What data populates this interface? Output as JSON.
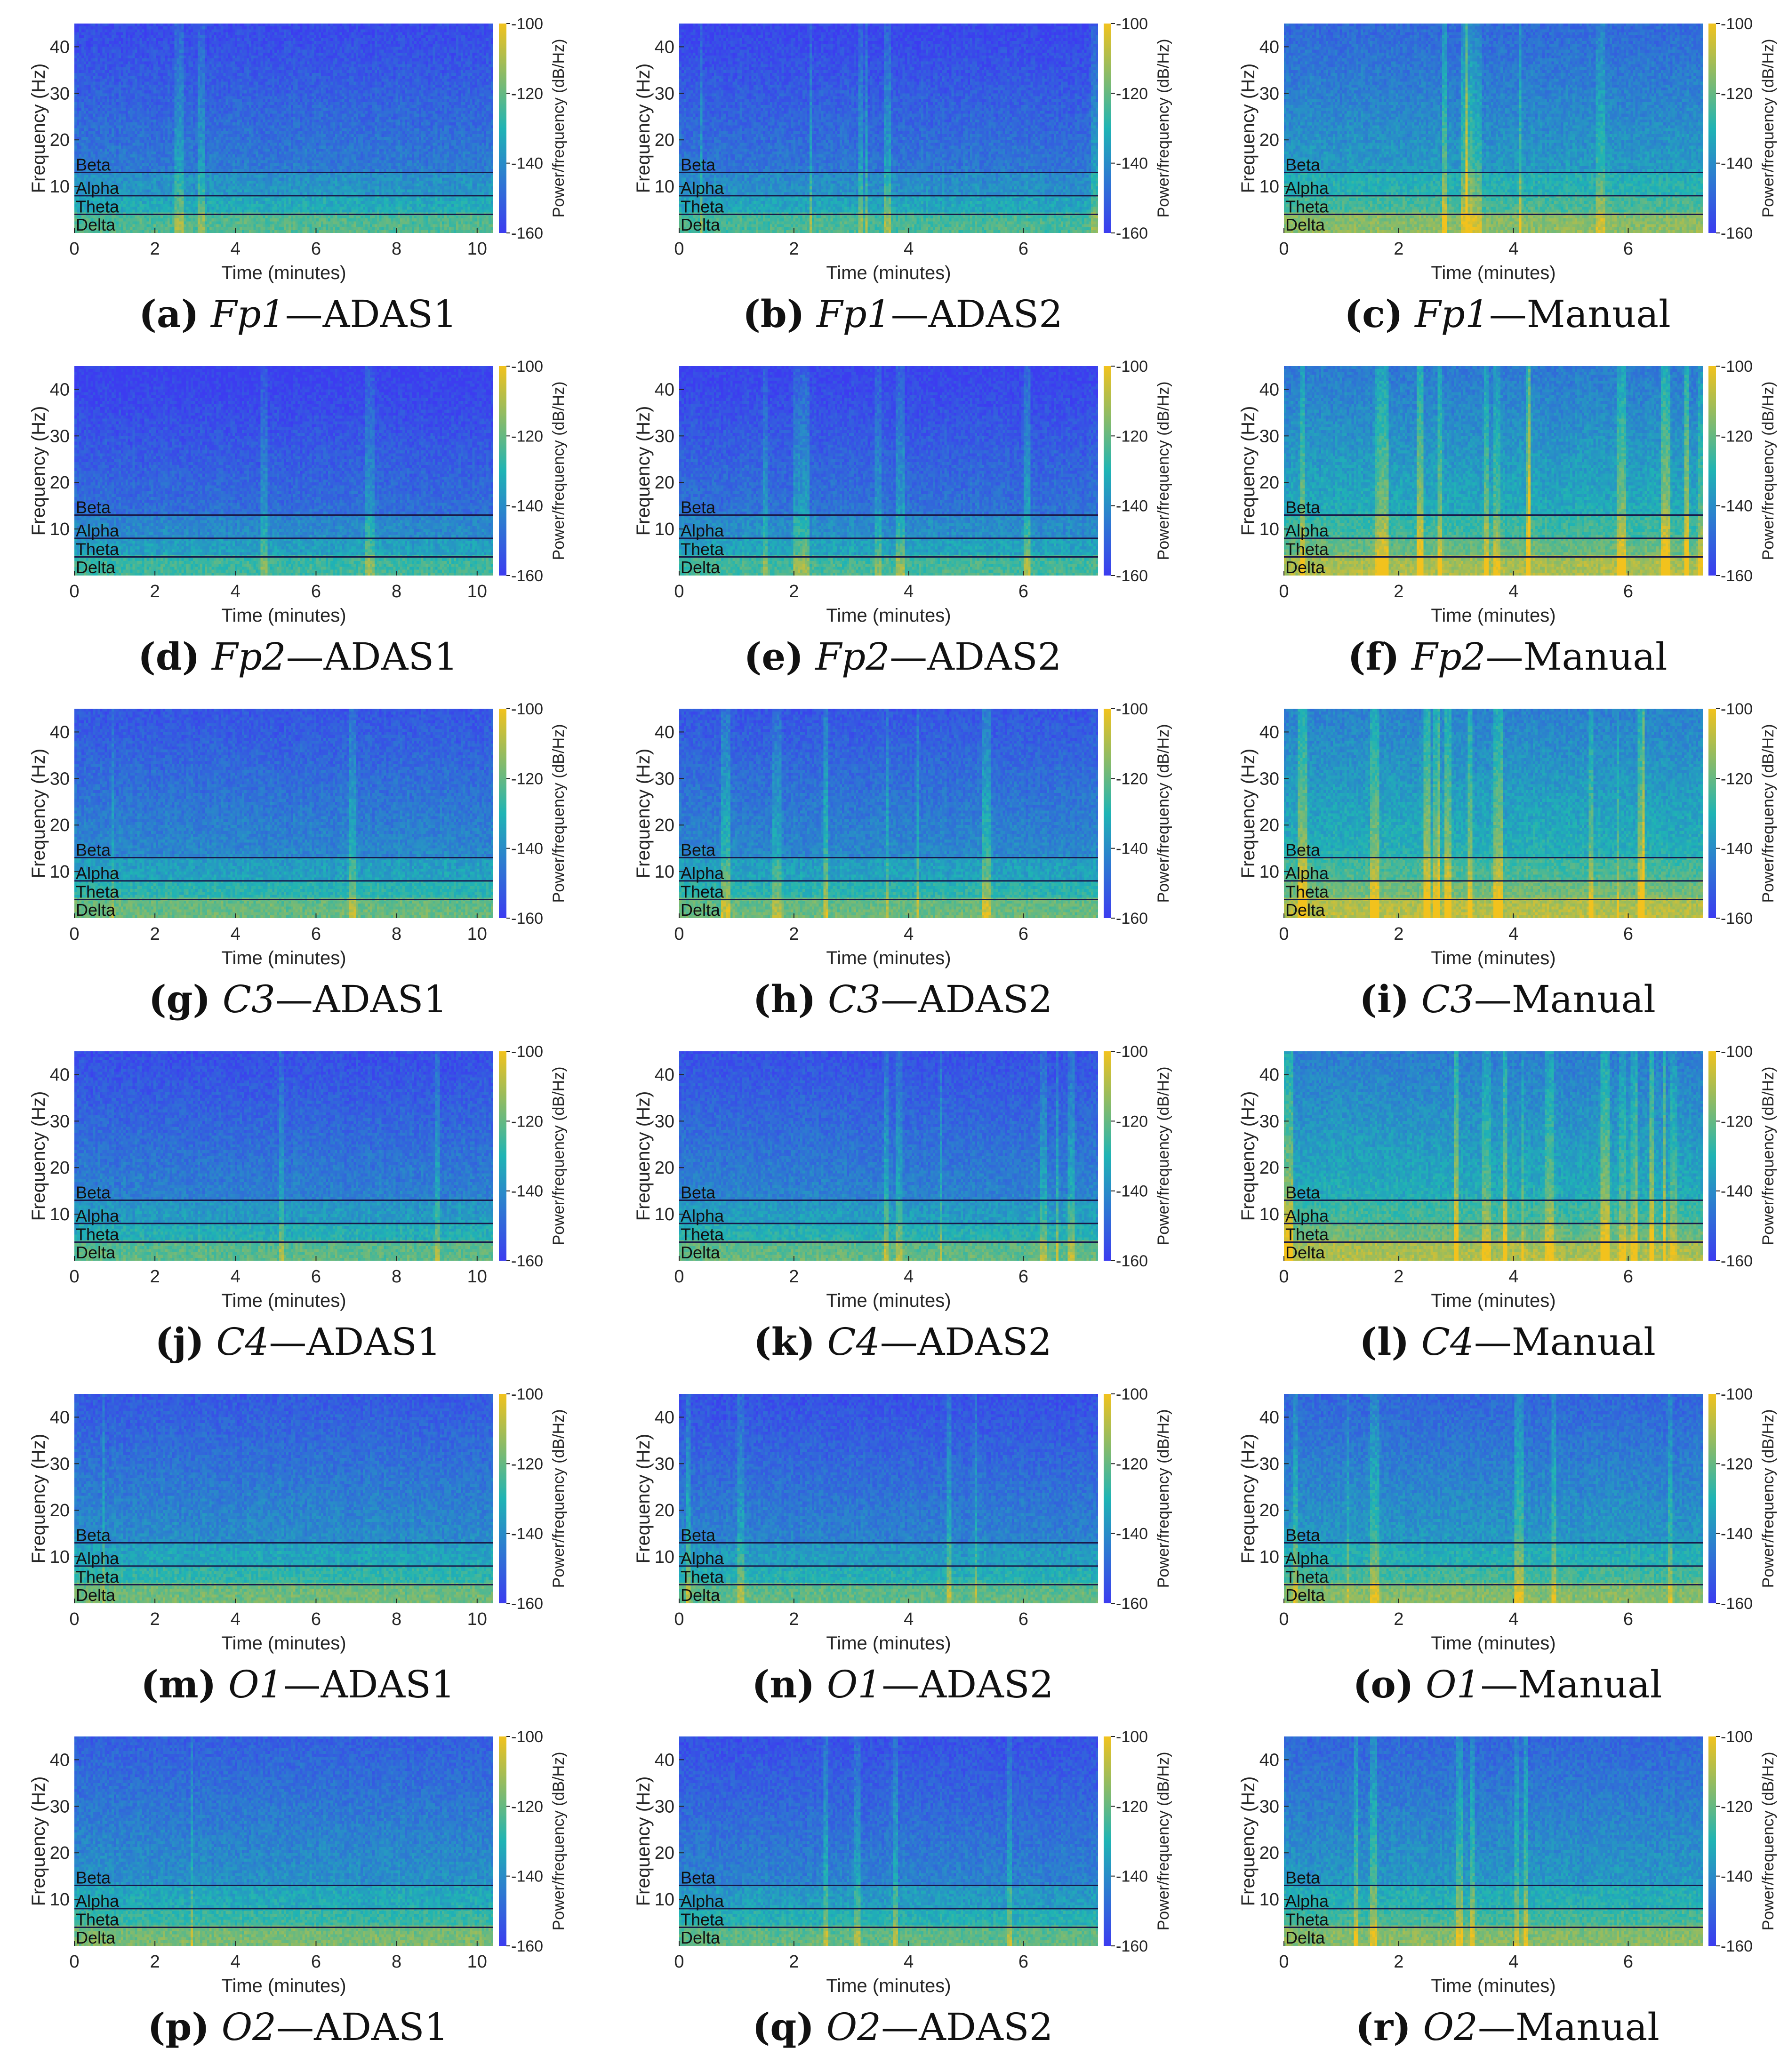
{
  "figure": {
    "rows": 6,
    "cols": 3
  },
  "colors": {
    "low": "#3c3cf0",
    "mid": "#1fb4b4",
    "high": "#f2c21d",
    "band_line": "#1a1a4a"
  },
  "chart_data": [
    {
      "id": "a",
      "letter": "(a)",
      "channel": "Fp1",
      "method": "ADAS1",
      "type": "heatmap",
      "xlabel": "Time (minutes)",
      "ylabel": "Frequency (Hz)",
      "colorbar_label": "Power/frequency (dB/Hz)",
      "xlim": [
        0,
        10.4
      ],
      "xticks": [
        "0",
        "2",
        "4",
        "6",
        "8",
        "10"
      ],
      "ylim": [
        0,
        45
      ],
      "yticks": [
        "10",
        "20",
        "30",
        "40"
      ],
      "clim": [
        -160,
        -100
      ],
      "cticks": [
        "-100",
        "-120",
        "-140",
        "-160"
      ],
      "bands": [
        {
          "name": "Delta",
          "lower_hz": 0
        },
        {
          "name": "Theta",
          "lower_hz": 4
        },
        {
          "name": "Alpha",
          "lower_hz": 8
        },
        {
          "name": "Beta",
          "lower_hz": 13
        }
      ],
      "intensity": 0.35,
      "artifact_strength": 0.15
    },
    {
      "id": "b",
      "letter": "(b)",
      "channel": "Fp1",
      "method": "ADAS2",
      "type": "heatmap",
      "xlabel": "Time (minutes)",
      "ylabel": "Frequency (Hz)",
      "colorbar_label": "Power/frequency (dB/Hz)",
      "xlim": [
        0,
        7.3
      ],
      "xticks": [
        "0",
        "2",
        "4",
        "6"
      ],
      "ylim": [
        0,
        45
      ],
      "yticks": [
        "10",
        "20",
        "30",
        "40"
      ],
      "clim": [
        -160,
        -100
      ],
      "cticks": [
        "-100",
        "-120",
        "-140",
        "-160"
      ],
      "bands": [
        {
          "name": "Delta",
          "lower_hz": 0
        },
        {
          "name": "Theta",
          "lower_hz": 4
        },
        {
          "name": "Alpha",
          "lower_hz": 8
        },
        {
          "name": "Beta",
          "lower_hz": 13
        }
      ],
      "intensity": 0.33,
      "artifact_strength": 0.4
    },
    {
      "id": "c",
      "letter": "(c)",
      "channel": "Fp1",
      "method": "Manual",
      "type": "heatmap",
      "xlabel": "Time (minutes)",
      "ylabel": "Frequency (Hz)",
      "colorbar_label": "Power/frequency (dB/Hz)",
      "xlim": [
        0,
        7.3
      ],
      "xticks": [
        "0",
        "2",
        "4",
        "6"
      ],
      "ylim": [
        0,
        45
      ],
      "yticks": [
        "10",
        "20",
        "30",
        "40"
      ],
      "clim": [
        -160,
        -100
      ],
      "cticks": [
        "-100",
        "-120",
        "-140",
        "-160"
      ],
      "bands": [
        {
          "name": "Delta",
          "lower_hz": 0
        },
        {
          "name": "Theta",
          "lower_hz": 4
        },
        {
          "name": "Alpha",
          "lower_hz": 8
        },
        {
          "name": "Beta",
          "lower_hz": 13
        }
      ],
      "intensity": 0.48,
      "artifact_strength": 0.5
    },
    {
      "id": "d",
      "letter": "(d)",
      "channel": "Fp2",
      "method": "ADAS1",
      "type": "heatmap",
      "xlabel": "Time (minutes)",
      "ylabel": "Frequency (Hz)",
      "colorbar_label": "Power/frequency (dB/Hz)",
      "xlim": [
        0,
        10.4
      ],
      "xticks": [
        "0",
        "2",
        "4",
        "6",
        "8",
        "10"
      ],
      "ylim": [
        0,
        45
      ],
      "yticks": [
        "10",
        "20",
        "30",
        "40"
      ],
      "clim": [
        -160,
        -100
      ],
      "cticks": [
        "-100",
        "-120",
        "-140",
        "-160"
      ],
      "bands": [
        {
          "name": "Delta",
          "lower_hz": 0
        },
        {
          "name": "Theta",
          "lower_hz": 4
        },
        {
          "name": "Alpha",
          "lower_hz": 8
        },
        {
          "name": "Beta",
          "lower_hz": 13
        }
      ],
      "intensity": 0.3,
      "artifact_strength": 0.15
    },
    {
      "id": "e",
      "letter": "(e)",
      "channel": "Fp2",
      "method": "ADAS2",
      "type": "heatmap",
      "xlabel": "Time (minutes)",
      "ylabel": "Frequency (Hz)",
      "colorbar_label": "Power/frequency (dB/Hz)",
      "xlim": [
        0,
        7.3
      ],
      "xticks": [
        "0",
        "2",
        "4",
        "6"
      ],
      "ylim": [
        0,
        45
      ],
      "yticks": [
        "10",
        "20",
        "30",
        "40"
      ],
      "clim": [
        -160,
        -100
      ],
      "cticks": [
        "-100",
        "-120",
        "-140",
        "-160"
      ],
      "bands": [
        {
          "name": "Delta",
          "lower_hz": 0
        },
        {
          "name": "Theta",
          "lower_hz": 4
        },
        {
          "name": "Alpha",
          "lower_hz": 8
        },
        {
          "name": "Beta",
          "lower_hz": 13
        }
      ],
      "intensity": 0.32,
      "artifact_strength": 0.4
    },
    {
      "id": "f",
      "letter": "(f)",
      "channel": "Fp2",
      "method": "Manual",
      "type": "heatmap",
      "xlabel": "Time (minutes)",
      "ylabel": "Frequency (Hz)",
      "colorbar_label": "Power/frequency (dB/Hz)",
      "xlim": [
        0,
        7.3
      ],
      "xticks": [
        "0",
        "2",
        "4",
        "6"
      ],
      "ylim": [
        0,
        45
      ],
      "yticks": [
        "10",
        "20",
        "30",
        "40"
      ],
      "clim": [
        -160,
        -100
      ],
      "cticks": [
        "-100",
        "-120",
        "-140",
        "-160"
      ],
      "bands": [
        {
          "name": "Delta",
          "lower_hz": 0
        },
        {
          "name": "Theta",
          "lower_hz": 4
        },
        {
          "name": "Alpha",
          "lower_hz": 8
        },
        {
          "name": "Beta",
          "lower_hz": 13
        }
      ],
      "intensity": 0.55,
      "artifact_strength": 0.9
    },
    {
      "id": "g",
      "letter": "(g)",
      "channel": "C3",
      "method": "ADAS1",
      "type": "heatmap",
      "xlabel": "Time (minutes)",
      "ylabel": "Frequency (Hz)",
      "colorbar_label": "Power/frequency (dB/Hz)",
      "xlim": [
        0,
        10.4
      ],
      "xticks": [
        "0",
        "2",
        "4",
        "6",
        "8",
        "10"
      ],
      "ylim": [
        0,
        45
      ],
      "yticks": [
        "10",
        "20",
        "30",
        "40"
      ],
      "clim": [
        -160,
        -100
      ],
      "cticks": [
        "-100",
        "-120",
        "-140",
        "-160"
      ],
      "bands": [
        {
          "name": "Delta",
          "lower_hz": 0
        },
        {
          "name": "Theta",
          "lower_hz": 4
        },
        {
          "name": "Alpha",
          "lower_hz": 8
        },
        {
          "name": "Beta",
          "lower_hz": 13
        }
      ],
      "intensity": 0.4,
      "artifact_strength": 0.15
    },
    {
      "id": "h",
      "letter": "(h)",
      "channel": "C3",
      "method": "ADAS2",
      "type": "heatmap",
      "xlabel": "Time (minutes)",
      "ylabel": "Frequency (Hz)",
      "colorbar_label": "Power/frequency (dB/Hz)",
      "xlim": [
        0,
        7.3
      ],
      "xticks": [
        "0",
        "2",
        "4",
        "6"
      ],
      "ylim": [
        0,
        45
      ],
      "yticks": [
        "10",
        "20",
        "30",
        "40"
      ],
      "clim": [
        -160,
        -100
      ],
      "cticks": [
        "-100",
        "-120",
        "-140",
        "-160"
      ],
      "bands": [
        {
          "name": "Delta",
          "lower_hz": 0
        },
        {
          "name": "Theta",
          "lower_hz": 4
        },
        {
          "name": "Alpha",
          "lower_hz": 8
        },
        {
          "name": "Beta",
          "lower_hz": 13
        }
      ],
      "intensity": 0.4,
      "artifact_strength": 0.45
    },
    {
      "id": "i",
      "letter": "(i)",
      "channel": "C3",
      "method": "Manual",
      "type": "heatmap",
      "xlabel": "Time (minutes)",
      "ylabel": "Frequency (Hz)",
      "colorbar_label": "Power/frequency (dB/Hz)",
      "xlim": [
        0,
        7.3
      ],
      "xticks": [
        "0",
        "2",
        "4",
        "6"
      ],
      "ylim": [
        0,
        45
      ],
      "yticks": [
        "10",
        "20",
        "30",
        "40"
      ],
      "clim": [
        -160,
        -100
      ],
      "cticks": [
        "-100",
        "-120",
        "-140",
        "-160"
      ],
      "bands": [
        {
          "name": "Delta",
          "lower_hz": 0
        },
        {
          "name": "Theta",
          "lower_hz": 4
        },
        {
          "name": "Alpha",
          "lower_hz": 8
        },
        {
          "name": "Beta",
          "lower_hz": 13
        }
      ],
      "intensity": 0.58,
      "artifact_strength": 0.9
    },
    {
      "id": "j",
      "letter": "(j)",
      "channel": "C4",
      "method": "ADAS1",
      "type": "heatmap",
      "xlabel": "Time (minutes)",
      "ylabel": "Frequency (Hz)",
      "colorbar_label": "Power/frequency (dB/Hz)",
      "xlim": [
        0,
        10.4
      ],
      "xticks": [
        "0",
        "2",
        "4",
        "6",
        "8",
        "10"
      ],
      "ylim": [
        0,
        45
      ],
      "yticks": [
        "10",
        "20",
        "30",
        "40"
      ],
      "clim": [
        -160,
        -100
      ],
      "cticks": [
        "-100",
        "-120",
        "-140",
        "-160"
      ],
      "bands": [
        {
          "name": "Delta",
          "lower_hz": 0
        },
        {
          "name": "Theta",
          "lower_hz": 4
        },
        {
          "name": "Alpha",
          "lower_hz": 8
        },
        {
          "name": "Beta",
          "lower_hz": 13
        }
      ],
      "intensity": 0.37,
      "artifact_strength": 0.15
    },
    {
      "id": "k",
      "letter": "(k)",
      "channel": "C4",
      "method": "ADAS2",
      "type": "heatmap",
      "xlabel": "Time (minutes)",
      "ylabel": "Frequency (Hz)",
      "colorbar_label": "Power/frequency (dB/Hz)",
      "xlim": [
        0,
        7.3
      ],
      "xticks": [
        "0",
        "2",
        "4",
        "6"
      ],
      "ylim": [
        0,
        45
      ],
      "yticks": [
        "10",
        "20",
        "30",
        "40"
      ],
      "clim": [
        -160,
        -100
      ],
      "cticks": [
        "-100",
        "-120",
        "-140",
        "-160"
      ],
      "bands": [
        {
          "name": "Delta",
          "lower_hz": 0
        },
        {
          "name": "Theta",
          "lower_hz": 4
        },
        {
          "name": "Alpha",
          "lower_hz": 8
        },
        {
          "name": "Beta",
          "lower_hz": 13
        }
      ],
      "intensity": 0.38,
      "artifact_strength": 0.45
    },
    {
      "id": "l",
      "letter": "(l)",
      "channel": "C4",
      "method": "Manual",
      "type": "heatmap",
      "xlabel": "Time (minutes)",
      "ylabel": "Frequency (Hz)",
      "colorbar_label": "Power/frequency (dB/Hz)",
      "xlim": [
        0,
        7.3
      ],
      "xticks": [
        "0",
        "2",
        "4",
        "6"
      ],
      "ylim": [
        0,
        45
      ],
      "yticks": [
        "10",
        "20",
        "30",
        "40"
      ],
      "clim": [
        -160,
        -100
      ],
      "cticks": [
        "-100",
        "-120",
        "-140",
        "-160"
      ],
      "bands": [
        {
          "name": "Delta",
          "lower_hz": 0
        },
        {
          "name": "Theta",
          "lower_hz": 4
        },
        {
          "name": "Alpha",
          "lower_hz": 8
        },
        {
          "name": "Beta",
          "lower_hz": 13
        }
      ],
      "intensity": 0.56,
      "artifact_strength": 0.95
    },
    {
      "id": "m",
      "letter": "(m)",
      "channel": "O1",
      "method": "ADAS1",
      "type": "heatmap",
      "xlabel": "Time (minutes)",
      "ylabel": "Frequency (Hz)",
      "colorbar_label": "Power/frequency (dB/Hz)",
      "xlim": [
        0,
        10.4
      ],
      "xticks": [
        "0",
        "2",
        "4",
        "6",
        "8",
        "10"
      ],
      "ylim": [
        0,
        45
      ],
      "yticks": [
        "10",
        "20",
        "30",
        "40"
      ],
      "clim": [
        -160,
        -100
      ],
      "cticks": [
        "-100",
        "-120",
        "-140",
        "-160"
      ],
      "bands": [
        {
          "name": "Delta",
          "lower_hz": 0
        },
        {
          "name": "Theta",
          "lower_hz": 4
        },
        {
          "name": "Alpha",
          "lower_hz": 8
        },
        {
          "name": "Beta",
          "lower_hz": 13
        }
      ],
      "intensity": 0.42,
      "artifact_strength": 0.1
    },
    {
      "id": "n",
      "letter": "(n)",
      "channel": "O1",
      "method": "ADAS2",
      "type": "heatmap",
      "xlabel": "Time (minutes)",
      "ylabel": "Frequency (Hz)",
      "colorbar_label": "Power/frequency (dB/Hz)",
      "xlim": [
        0,
        7.3
      ],
      "xticks": [
        "0",
        "2",
        "4",
        "6"
      ],
      "ylim": [
        0,
        45
      ],
      "yticks": [
        "10",
        "20",
        "30",
        "40"
      ],
      "clim": [
        -160,
        -100
      ],
      "cticks": [
        "-100",
        "-120",
        "-140",
        "-160"
      ],
      "bands": [
        {
          "name": "Delta",
          "lower_hz": 0
        },
        {
          "name": "Theta",
          "lower_hz": 4
        },
        {
          "name": "Alpha",
          "lower_hz": 8
        },
        {
          "name": "Beta",
          "lower_hz": 13
        }
      ],
      "intensity": 0.38,
      "artifact_strength": 0.25
    },
    {
      "id": "o",
      "letter": "(o)",
      "channel": "O1",
      "method": "Manual",
      "type": "heatmap",
      "xlabel": "Time (minutes)",
      "ylabel": "Frequency (Hz)",
      "colorbar_label": "Power/frequency (dB/Hz)",
      "xlim": [
        0,
        7.3
      ],
      "xticks": [
        "0",
        "2",
        "4",
        "6"
      ],
      "ylim": [
        0,
        45
      ],
      "yticks": [
        "10",
        "20",
        "30",
        "40"
      ],
      "clim": [
        -160,
        -100
      ],
      "cticks": [
        "-100",
        "-120",
        "-140",
        "-160"
      ],
      "bands": [
        {
          "name": "Delta",
          "lower_hz": 0
        },
        {
          "name": "Theta",
          "lower_hz": 4
        },
        {
          "name": "Alpha",
          "lower_hz": 8
        },
        {
          "name": "Beta",
          "lower_hz": 13
        }
      ],
      "intensity": 0.47,
      "artifact_strength": 0.4
    },
    {
      "id": "p",
      "letter": "(p)",
      "channel": "O2",
      "method": "ADAS1",
      "type": "heatmap",
      "xlabel": "Time (minutes)",
      "ylabel": "Frequency (Hz)",
      "colorbar_label": "Power/frequency (dB/Hz)",
      "xlim": [
        0,
        10.4
      ],
      "xticks": [
        "0",
        "2",
        "4",
        "6",
        "8",
        "10"
      ],
      "ylim": [
        0,
        45
      ],
      "yticks": [
        "10",
        "20",
        "30",
        "40"
      ],
      "clim": [
        -160,
        -100
      ],
      "cticks": [
        "-100",
        "-120",
        "-140",
        "-160"
      ],
      "bands": [
        {
          "name": "Delta",
          "lower_hz": 0
        },
        {
          "name": "Theta",
          "lower_hz": 4
        },
        {
          "name": "Alpha",
          "lower_hz": 8
        },
        {
          "name": "Beta",
          "lower_hz": 13
        }
      ],
      "intensity": 0.44,
      "artifact_strength": 0.1
    },
    {
      "id": "q",
      "letter": "(q)",
      "channel": "O2",
      "method": "ADAS2",
      "type": "heatmap",
      "xlabel": "Time (minutes)",
      "ylabel": "Frequency (Hz)",
      "colorbar_label": "Power/frequency (dB/Hz)",
      "xlim": [
        0,
        7.3
      ],
      "xticks": [
        "0",
        "2",
        "4",
        "6"
      ],
      "ylim": [
        0,
        45
      ],
      "yticks": [
        "10",
        "20",
        "30",
        "40"
      ],
      "clim": [
        -160,
        -100
      ],
      "cticks": [
        "-100",
        "-120",
        "-140",
        "-160"
      ],
      "bands": [
        {
          "name": "Delta",
          "lower_hz": 0
        },
        {
          "name": "Theta",
          "lower_hz": 4
        },
        {
          "name": "Alpha",
          "lower_hz": 8
        },
        {
          "name": "Beta",
          "lower_hz": 13
        }
      ],
      "intensity": 0.38,
      "artifact_strength": 0.25
    },
    {
      "id": "r",
      "letter": "(r)",
      "channel": "O2",
      "method": "Manual",
      "type": "heatmap",
      "xlabel": "Time (minutes)",
      "ylabel": "Frequency (Hz)",
      "colorbar_label": "Power/frequency (dB/Hz)",
      "xlim": [
        0,
        7.3
      ],
      "xticks": [
        "0",
        "2",
        "4",
        "6"
      ],
      "ylim": [
        0,
        45
      ],
      "yticks": [
        "10",
        "20",
        "30",
        "40"
      ],
      "clim": [
        -160,
        -100
      ],
      "cticks": [
        "-100",
        "-120",
        "-140",
        "-160"
      ],
      "bands": [
        {
          "name": "Delta",
          "lower_hz": 0
        },
        {
          "name": "Theta",
          "lower_hz": 4
        },
        {
          "name": "Alpha",
          "lower_hz": 8
        },
        {
          "name": "Beta",
          "lower_hz": 13
        }
      ],
      "intensity": 0.47,
      "artifact_strength": 0.4
    }
  ]
}
